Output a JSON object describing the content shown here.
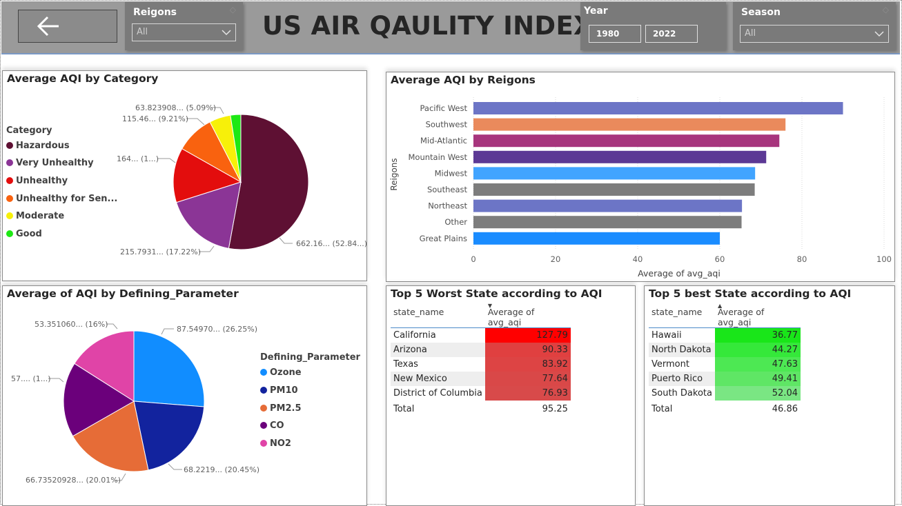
{
  "header": {
    "title": "US AIR QAULITY INDEX",
    "regions_slicer": {
      "label": "Reigons",
      "value": "All"
    },
    "year_slicer": {
      "label": "Year",
      "from": "1980",
      "to": "2022"
    },
    "season_slicer": {
      "label": "Season",
      "value": "All"
    },
    "back_icon": "arrow-left-icon",
    "colors": {
      "header_bg": "#9a9a9a",
      "slicer_bg": "#7a7a7a"
    }
  },
  "category_chart": {
    "title": "Average AQI by Category",
    "legend_title": "Category",
    "legend": [
      {
        "name": "Hazardous",
        "color": "#5e1033"
      },
      {
        "name": "Very Unhealthy",
        "color": "#8b3596"
      },
      {
        "name": "Unhealthy",
        "color": "#e30d0d"
      },
      {
        "name": "Unhealthy for Sen...",
        "color": "#f9620f"
      },
      {
        "name": "Moderate",
        "color": "#f7f009"
      },
      {
        "name": "Good",
        "color": "#1ee814"
      }
    ],
    "labels": {
      "hazardous": "662.16... (52.84...)",
      "very_unhealthy": "215.7931... (17.22%)",
      "unhealthy": "164... (1...)",
      "unhealthy_sen": "115.46... (9.21%)",
      "moderate": "63.823908... (5.09%)"
    }
  },
  "region_chart": {
    "title": "Average AQI by Reigons",
    "ylabel": "Reigons",
    "xlabel": "Average of avg_aqi"
  },
  "parameter_chart": {
    "title": "Average of AQI by Defining_Parameter",
    "legend_title": "Defining_Parameter",
    "legend": [
      {
        "name": "Ozone",
        "color": "#118dff"
      },
      {
        "name": "PM10",
        "color": "#12239e"
      },
      {
        "name": "PM2.5",
        "color": "#e66c37"
      },
      {
        "name": "CO",
        "color": "#6b007b"
      },
      {
        "name": "NO2",
        "color": "#e044a7"
      }
    ],
    "labels": {
      "ozone": "87.54970... (26.25%)",
      "pm10": "68.2219... (20.45%)",
      "pm25": "66.73520928... (20.01%)",
      "co": "57.... (1...)",
      "no2": "53.351060... (16%)"
    }
  },
  "worst_table": {
    "title": "Top 5 Worst State according to AQI",
    "col1": "state_name",
    "col2": "Average of avg_aqi",
    "rows": [
      {
        "state": "California",
        "value": "127.79",
        "color": "#ff0000"
      },
      {
        "state": "Arizona",
        "value": "90.33",
        "color": "#e04040"
      },
      {
        "state": "Texas",
        "value": "83.92",
        "color": "#dd4444"
      },
      {
        "state": "New Mexico",
        "value": "77.64",
        "color": "#d94848"
      },
      {
        "state": "District of Columbia",
        "value": "76.93",
        "color": "#d84a4a"
      }
    ],
    "total_label": "Total",
    "total_value": "95.25"
  },
  "best_table": {
    "title": "Top 5 best State according to AQI",
    "col1": "state_name",
    "col2": "Average of avg_aqi",
    "rows": [
      {
        "state": "Hawaii",
        "value": "36.77",
        "color": "#19e619"
      },
      {
        "state": "North Dakota",
        "value": "44.27",
        "color": "#35e83a"
      },
      {
        "state": "Vermont",
        "value": "47.63",
        "color": "#4de853"
      },
      {
        "state": "Puerto Rico",
        "value": "49.41",
        "color": "#5fe665"
      },
      {
        "state": "South Dakota",
        "value": "52.04",
        "color": "#7ae683"
      }
    ],
    "total_label": "Total",
    "total_value": "46.86"
  },
  "chart_data": [
    {
      "type": "pie",
      "title": "Average AQI by Category",
      "categories": [
        "Hazardous",
        "Very Unhealthy",
        "Unhealthy",
        "Unhealthy for Sen...",
        "Moderate",
        "Good"
      ],
      "values": [
        662.16,
        215.7931,
        164,
        115.46,
        63.823908,
        31
      ],
      "percent": [
        52.84,
        17.22,
        13.1,
        9.21,
        5.09,
        2.5
      ]
    },
    {
      "type": "bar",
      "title": "Average AQI by Reigons",
      "orientation": "horizontal",
      "xlabel": "Average of avg_aqi",
      "ylabel": "Reigons",
      "categories": [
        "Pacific West",
        "Southwest",
        "Mid-Atlantic",
        "Mountain West",
        "Midwest",
        "Southeast",
        "Northeast",
        "Other",
        "Great Plains"
      ],
      "values": [
        90,
        76,
        74.5,
        71.3,
        68.6,
        68.5,
        65.4,
        65.3,
        60
      ],
      "colors": [
        "#6c75c6",
        "#ea8a5c",
        "#a7357d",
        "#5c3995",
        "#41a4ff",
        "#7d7d7d",
        "#6c75c6",
        "#7d7d7d",
        "#1a8cff"
      ],
      "xlim": [
        0,
        100
      ],
      "xticks": [
        0,
        20,
        40,
        60,
        80,
        100
      ],
      "grid": true
    },
    {
      "type": "pie",
      "title": "Average of AQI by Defining_Parameter",
      "categories": [
        "Ozone",
        "PM10",
        "PM2.5",
        "CO",
        "NO2"
      ],
      "values": [
        87.5497,
        68.2219,
        66.73520928,
        57.6,
        53.35106
      ],
      "percent": [
        26.25,
        20.45,
        20.01,
        17.29,
        16
      ]
    }
  ]
}
